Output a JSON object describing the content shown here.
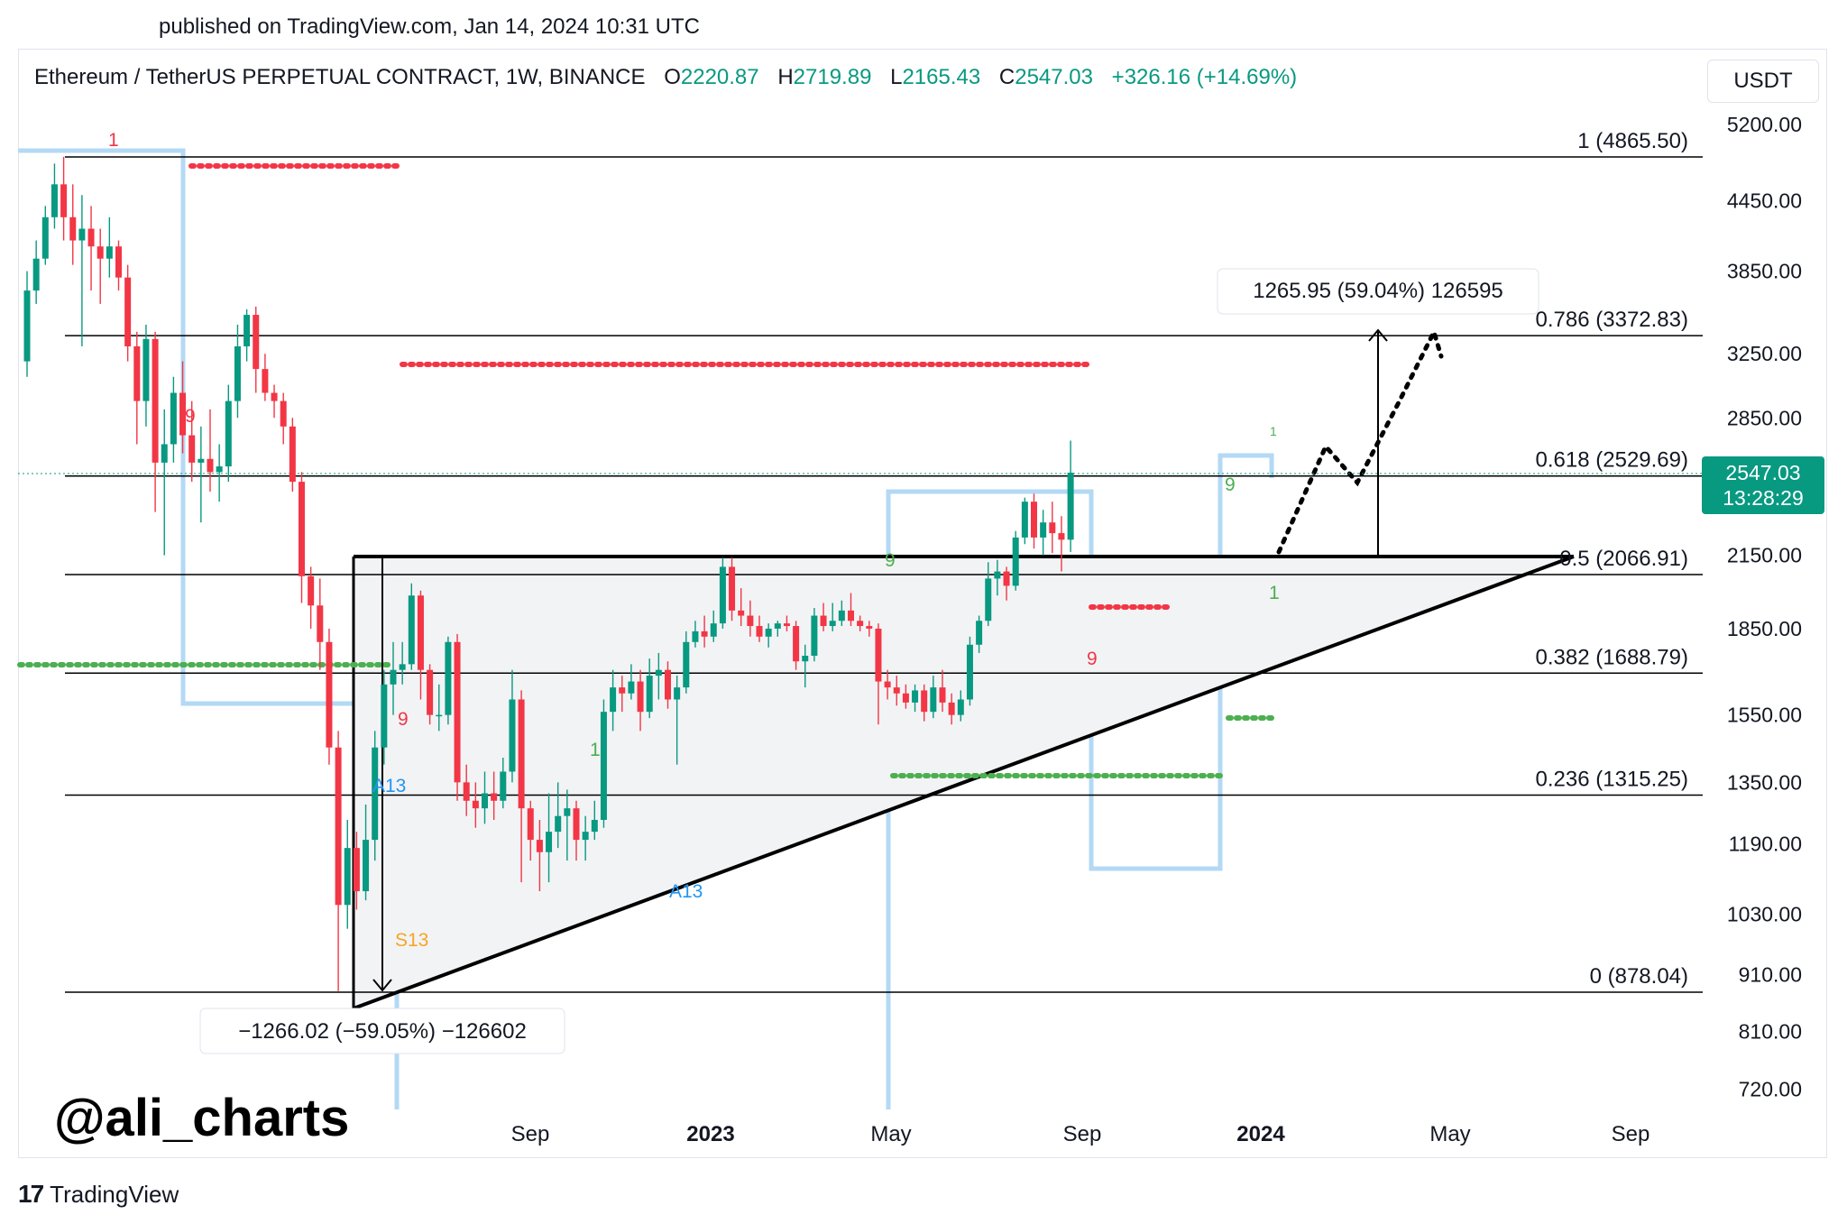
{
  "published": "published on TradingView.com, Jan 14, 2024 10:31 UTC",
  "header": {
    "symbol": "Ethereum / TetherUS PERPETUAL CONTRACT, 1W, BINANCE",
    "o_label": "O",
    "o_value": "2220.87",
    "h_label": "H",
    "h_value": "2719.89",
    "l_label": "L",
    "l_value": "2165.43",
    "c_label": "C",
    "c_value": "2547.03",
    "change": "+326.16 (+14.69%)"
  },
  "currency_button": "USDT",
  "watermark": "@ali_charts",
  "branding": "TradingView",
  "colors": {
    "up": "#089981",
    "down": "#f23645",
    "td_box": "#b3d9f5",
    "fib_line": "#000000",
    "price_tag": "#089981"
  },
  "chart_data": {
    "type": "candlestick",
    "title": "Ethereum / TetherUS PERPETUAL CONTRACT, 1W, BINANCE",
    "y_scale": "log",
    "y_ticks": [
      "5200.00",
      "4450.00",
      "3850.00",
      "3250.00",
      "2850.00",
      "2150.00",
      "1850.00",
      "1550.00",
      "1350.00",
      "1190.00",
      "1030.00",
      "910.00",
      "810.00",
      "720.00"
    ],
    "x_ticks": [
      {
        "label": "Sep",
        "bold": false
      },
      {
        "label": "2023",
        "bold": true
      },
      {
        "label": "May",
        "bold": false
      },
      {
        "label": "Sep",
        "bold": false
      },
      {
        "label": "2024",
        "bold": true
      },
      {
        "label": "May",
        "bold": false
      },
      {
        "label": "Sep",
        "bold": false
      }
    ],
    "fib_levels": [
      {
        "ratio": "1",
        "price": 4865.5,
        "label": "1 (4865.50)"
      },
      {
        "ratio": "0.786",
        "price": 3372.83,
        "label": "0.786 (3372.83)"
      },
      {
        "ratio": "0.618",
        "price": 2529.69,
        "label": "0.618 (2529.69)"
      },
      {
        "ratio": "0.5",
        "price": 2066.91,
        "label": "0.5 (2066.91)"
      },
      {
        "ratio": "0.382",
        "price": 1688.79,
        "label": "0.382 (1688.79)"
      },
      {
        "ratio": "0.236",
        "price": 1315.25,
        "label": "0.236 (1315.25)"
      },
      {
        "ratio": "0",
        "price": 878.04,
        "label": "0 (878.04)"
      }
    ],
    "last_price": "2547.03",
    "countdown": "13:28:29",
    "measure_up": "1265.95 (59.04%) 126595",
    "measure_down": "−1266.02 (−59.05%) −126602",
    "td_labels": [
      "1",
      "9",
      "9",
      "A13",
      "S13",
      "1",
      "A13",
      "9",
      "9",
      "9",
      "1",
      "1"
    ],
    "candles": [
      {
        "o": 3200,
        "c": 3700,
        "h": 3850,
        "l": 3100
      },
      {
        "o": 3700,
        "c": 3950,
        "h": 4100,
        "l": 3600
      },
      {
        "o": 3950,
        "c": 4300,
        "h": 4400,
        "l": 3900
      },
      {
        "o": 4300,
        "c": 4600,
        "h": 4800,
        "l": 4200
      },
      {
        "o": 4600,
        "c": 4300,
        "h": 4866,
        "l": 4100
      },
      {
        "o": 4300,
        "c": 4100,
        "h": 4600,
        "l": 3900
      },
      {
        "o": 4100,
        "c": 4200,
        "h": 4500,
        "l": 3300
      },
      {
        "o": 4200,
        "c": 4050,
        "h": 4400,
        "l": 3700
      },
      {
        "o": 4050,
        "c": 3950,
        "h": 4200,
        "l": 3600
      },
      {
        "o": 3950,
        "c": 4050,
        "h": 4300,
        "l": 3800
      },
      {
        "o": 4050,
        "c": 3800,
        "h": 4100,
        "l": 3700
      },
      {
        "o": 3800,
        "c": 3300,
        "h": 3900,
        "l": 3200
      },
      {
        "o": 3300,
        "c": 2950,
        "h": 3400,
        "l": 2700
      },
      {
        "o": 2950,
        "c": 3350,
        "h": 3450,
        "l": 2800
      },
      {
        "o": 3350,
        "c": 2600,
        "h": 3400,
        "l": 2350
      },
      {
        "o": 2600,
        "c": 2700,
        "h": 2900,
        "l": 2150
      },
      {
        "o": 2700,
        "c": 3000,
        "h": 3100,
        "l": 2600
      },
      {
        "o": 3000,
        "c": 2750,
        "h": 3200,
        "l": 2650
      },
      {
        "o": 2750,
        "c": 2600,
        "h": 2950,
        "l": 2500
      },
      {
        "o": 2600,
        "c": 2620,
        "h": 2800,
        "l": 2300
      },
      {
        "o": 2620,
        "c": 2550,
        "h": 2900,
        "l": 2450
      },
      {
        "o": 2550,
        "c": 2580,
        "h": 2700,
        "l": 2400
      },
      {
        "o": 2580,
        "c": 2950,
        "h": 3050,
        "l": 2500
      },
      {
        "o": 2950,
        "c": 3300,
        "h": 3450,
        "l": 2850
      },
      {
        "o": 3300,
        "c": 3520,
        "h": 3560,
        "l": 3200
      },
      {
        "o": 3520,
        "c": 3150,
        "h": 3580,
        "l": 3000
      },
      {
        "o": 3150,
        "c": 3000,
        "h": 3250,
        "l": 2950
      },
      {
        "o": 3000,
        "c": 2950,
        "h": 3050,
        "l": 2850
      },
      {
        "o": 2950,
        "c": 2800,
        "h": 3000,
        "l": 2700
      },
      {
        "o": 2800,
        "c": 2500,
        "h": 2850,
        "l": 2450
      },
      {
        "o": 2500,
        "c": 2060,
        "h": 2550,
        "l": 1950
      },
      {
        "o": 2060,
        "c": 1940,
        "h": 2100,
        "l": 1850
      },
      {
        "o": 1940,
        "c": 1800,
        "h": 2050,
        "l": 1700
      },
      {
        "o": 1800,
        "c": 1450,
        "h": 1850,
        "l": 1400
      },
      {
        "o": 1450,
        "c": 1050,
        "h": 1500,
        "l": 880
      },
      {
        "o": 1050,
        "c": 1180,
        "h": 1250,
        "l": 1000
      },
      {
        "o": 1180,
        "c": 1080,
        "h": 1220,
        "l": 1040
      },
      {
        "o": 1080,
        "c": 1200,
        "h": 1290,
        "l": 1060
      },
      {
        "o": 1200,
        "c": 1450,
        "h": 1500,
        "l": 1150
      },
      {
        "o": 1450,
        "c": 1650,
        "h": 1700,
        "l": 1400
      },
      {
        "o": 1650,
        "c": 1700,
        "h": 1800,
        "l": 1550
      },
      {
        "o": 1700,
        "c": 1720,
        "h": 1800,
        "l": 1650
      },
      {
        "o": 1720,
        "c": 1980,
        "h": 2030,
        "l": 1700
      },
      {
        "o": 1980,
        "c": 1700,
        "h": 2000,
        "l": 1600
      },
      {
        "o": 1700,
        "c": 1550,
        "h": 1720,
        "l": 1520
      },
      {
        "o": 1550,
        "c": 1550,
        "h": 1650,
        "l": 1500
      },
      {
        "o": 1550,
        "c": 1800,
        "h": 1820,
        "l": 1520
      },
      {
        "o": 1800,
        "c": 1350,
        "h": 1830,
        "l": 1300
      },
      {
        "o": 1350,
        "c": 1300,
        "h": 1400,
        "l": 1260
      },
      {
        "o": 1300,
        "c": 1280,
        "h": 1350,
        "l": 1230
      },
      {
        "o": 1280,
        "c": 1320,
        "h": 1380,
        "l": 1240
      },
      {
        "o": 1320,
        "c": 1300,
        "h": 1380,
        "l": 1250
      },
      {
        "o": 1300,
        "c": 1380,
        "h": 1420,
        "l": 1280
      },
      {
        "o": 1380,
        "c": 1600,
        "h": 1700,
        "l": 1350
      },
      {
        "o": 1600,
        "c": 1280,
        "h": 1630,
        "l": 1100
      },
      {
        "o": 1280,
        "c": 1200,
        "h": 1300,
        "l": 1150
      },
      {
        "o": 1200,
        "c": 1170,
        "h": 1250,
        "l": 1080
      },
      {
        "o": 1170,
        "c": 1220,
        "h": 1320,
        "l": 1100
      },
      {
        "o": 1220,
        "c": 1260,
        "h": 1350,
        "l": 1180
      },
      {
        "o": 1260,
        "c": 1280,
        "h": 1330,
        "l": 1150
      },
      {
        "o": 1280,
        "c": 1200,
        "h": 1300,
        "l": 1150
      },
      {
        "o": 1200,
        "c": 1220,
        "h": 1260,
        "l": 1150
      },
      {
        "o": 1220,
        "c": 1250,
        "h": 1300,
        "l": 1200
      },
      {
        "o": 1250,
        "c": 1560,
        "h": 1600,
        "l": 1230
      },
      {
        "o": 1560,
        "c": 1640,
        "h": 1700,
        "l": 1500
      },
      {
        "o": 1640,
        "c": 1620,
        "h": 1680,
        "l": 1560
      },
      {
        "o": 1620,
        "c": 1660,
        "h": 1720,
        "l": 1600
      },
      {
        "o": 1660,
        "c": 1560,
        "h": 1700,
        "l": 1500
      },
      {
        "o": 1560,
        "c": 1680,
        "h": 1740,
        "l": 1540
      },
      {
        "o": 1680,
        "c": 1700,
        "h": 1760,
        "l": 1600
      },
      {
        "o": 1700,
        "c": 1600,
        "h": 1730,
        "l": 1570
      },
      {
        "o": 1600,
        "c": 1640,
        "h": 1680,
        "l": 1400
      },
      {
        "o": 1640,
        "c": 1800,
        "h": 1840,
        "l": 1620
      },
      {
        "o": 1800,
        "c": 1840,
        "h": 1880,
        "l": 1780
      },
      {
        "o": 1840,
        "c": 1820,
        "h": 1900,
        "l": 1780
      },
      {
        "o": 1820,
        "c": 1870,
        "h": 1920,
        "l": 1800
      },
      {
        "o": 1870,
        "c": 2100,
        "h": 2140,
        "l": 1850
      },
      {
        "o": 2100,
        "c": 1920,
        "h": 2140,
        "l": 1880
      },
      {
        "o": 1920,
        "c": 1900,
        "h": 2010,
        "l": 1860
      },
      {
        "o": 1900,
        "c": 1860,
        "h": 1960,
        "l": 1820
      },
      {
        "o": 1860,
        "c": 1820,
        "h": 1900,
        "l": 1800
      },
      {
        "o": 1820,
        "c": 1850,
        "h": 1870,
        "l": 1780
      },
      {
        "o": 1850,
        "c": 1870,
        "h": 1880,
        "l": 1820
      },
      {
        "o": 1870,
        "c": 1860,
        "h": 1900,
        "l": 1840
      },
      {
        "o": 1860,
        "c": 1730,
        "h": 1880,
        "l": 1700
      },
      {
        "o": 1730,
        "c": 1750,
        "h": 1790,
        "l": 1640
      },
      {
        "o": 1750,
        "c": 1900,
        "h": 1930,
        "l": 1730
      },
      {
        "o": 1900,
        "c": 1860,
        "h": 1950,
        "l": 1840
      },
      {
        "o": 1860,
        "c": 1880,
        "h": 1950,
        "l": 1840
      },
      {
        "o": 1880,
        "c": 1920,
        "h": 1960,
        "l": 1860
      },
      {
        "o": 1920,
        "c": 1880,
        "h": 1990,
        "l": 1860
      },
      {
        "o": 1880,
        "c": 1860,
        "h": 1900,
        "l": 1840
      },
      {
        "o": 1860,
        "c": 1850,
        "h": 1880,
        "l": 1820
      },
      {
        "o": 1850,
        "c": 1660,
        "h": 1870,
        "l": 1520
      },
      {
        "o": 1660,
        "c": 1640,
        "h": 1700,
        "l": 1600
      },
      {
        "o": 1640,
        "c": 1620,
        "h": 1680,
        "l": 1580
      },
      {
        "o": 1620,
        "c": 1590,
        "h": 1650,
        "l": 1570
      },
      {
        "o": 1590,
        "c": 1630,
        "h": 1650,
        "l": 1560
      },
      {
        "o": 1630,
        "c": 1560,
        "h": 1650,
        "l": 1530
      },
      {
        "o": 1560,
        "c": 1640,
        "h": 1680,
        "l": 1540
      },
      {
        "o": 1640,
        "c": 1590,
        "h": 1700,
        "l": 1560
      },
      {
        "o": 1590,
        "c": 1550,
        "h": 1620,
        "l": 1520
      },
      {
        "o": 1550,
        "c": 1600,
        "h": 1630,
        "l": 1530
      },
      {
        "o": 1600,
        "c": 1790,
        "h": 1820,
        "l": 1580
      },
      {
        "o": 1790,
        "c": 1880,
        "h": 1900,
        "l": 1760
      },
      {
        "o": 1880,
        "c": 2050,
        "h": 2120,
        "l": 1860
      },
      {
        "o": 2050,
        "c": 2080,
        "h": 2130,
        "l": 1980
      },
      {
        "o": 2080,
        "c": 2020,
        "h": 2100,
        "l": 1960
      },
      {
        "o": 2020,
        "c": 2230,
        "h": 2260,
        "l": 2000
      },
      {
        "o": 2230,
        "c": 2400,
        "h": 2420,
        "l": 2200
      },
      {
        "o": 2400,
        "c": 2230,
        "h": 2440,
        "l": 2180
      },
      {
        "o": 2230,
        "c": 2300,
        "h": 2360,
        "l": 2150
      },
      {
        "o": 2300,
        "c": 2250,
        "h": 2400,
        "l": 2160
      },
      {
        "o": 2250,
        "c": 2220,
        "h": 2330,
        "l": 2080
      },
      {
        "o": 2220,
        "c": 2547,
        "h": 2720,
        "l": 2165
      }
    ]
  }
}
